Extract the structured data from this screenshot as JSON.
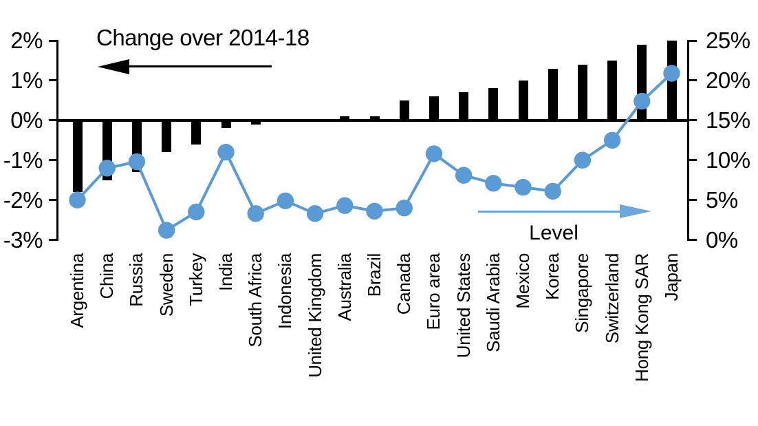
{
  "chart_data": {
    "type": "combo-bar-line",
    "categories": [
      "Argentina",
      "China",
      "Russia",
      "Sweden",
      "Turkey",
      "India",
      "South Africa",
      "Indonesia",
      "United Kingdom",
      "Australia",
      "Brazil",
      "Canada",
      "Euro area",
      "United States",
      "Saudi Arabia",
      "Mexico",
      "Korea",
      "Singapore",
      "Switzerland",
      "Hong Kong SAR",
      "Japan"
    ],
    "series": [
      {
        "name": "Change over 2014-18",
        "type": "bar",
        "axis": "left",
        "unit": "%",
        "values": [
          -1.8,
          -1.5,
          -1.3,
          -0.8,
          -0.6,
          -0.2,
          -0.1,
          0,
          0,
          0.1,
          0.1,
          0.5,
          0.6,
          0.7,
          0.8,
          1.0,
          1.3,
          1.4,
          1.5,
          1.9,
          2.0
        ]
      },
      {
        "name": "Level",
        "type": "line",
        "axis": "right",
        "unit": "%",
        "values": [
          5.0,
          9.0,
          9.8,
          1.2,
          3.5,
          11.0,
          3.3,
          4.9,
          3.3,
          4.3,
          3.6,
          4.0,
          10.8,
          8.1,
          7.1,
          6.6,
          6.1,
          10.0,
          12.5,
          17.4,
          20.9
        ]
      }
    ],
    "left_axis": {
      "ticks": [
        "2%",
        "1%",
        "0%",
        "-1%",
        "-2%",
        "-3%"
      ],
      "min": -3,
      "max": 2
    },
    "right_axis": {
      "ticks": [
        "25%",
        "20%",
        "15%",
        "10%",
        "5%",
        "0%"
      ],
      "min": 0,
      "max": 25
    },
    "annotations": {
      "bar_label": "Change over 2014-18",
      "line_label": "Level"
    },
    "layout_hints": {
      "grid": false,
      "legend": "annotated arrows",
      "bar_baseline": "0% left axis = 15% right axis"
    },
    "colors": {
      "bar": "#000000",
      "line": "#5B9BD5",
      "arrow_blue": "#6CA6DD",
      "text": "#000000",
      "background": "#FFFFFF"
    }
  }
}
